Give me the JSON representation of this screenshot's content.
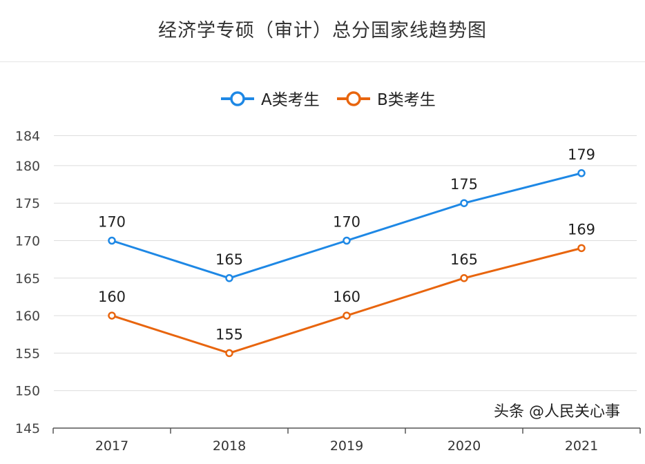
{
  "watermark": "头条 @人民关心事",
  "chart_data": {
    "type": "line",
    "title": "经济学专硕（审计）总分国家线趋势图",
    "categories": [
      "2017",
      "2018",
      "2019",
      "2020",
      "2021"
    ],
    "series": [
      {
        "name": "A类考生",
        "color": "#1e88e5",
        "values": [
          170,
          165,
          170,
          175,
          179
        ]
      },
      {
        "name": "B类考生",
        "color": "#e8650e",
        "values": [
          160,
          155,
          160,
          165,
          169
        ]
      }
    ],
    "yticks": [
      145,
      150,
      155,
      160,
      165,
      170,
      175,
      180,
      184
    ],
    "ylim": [
      145,
      184
    ],
    "grid": true,
    "legend": "top-center",
    "data_labels": true
  }
}
